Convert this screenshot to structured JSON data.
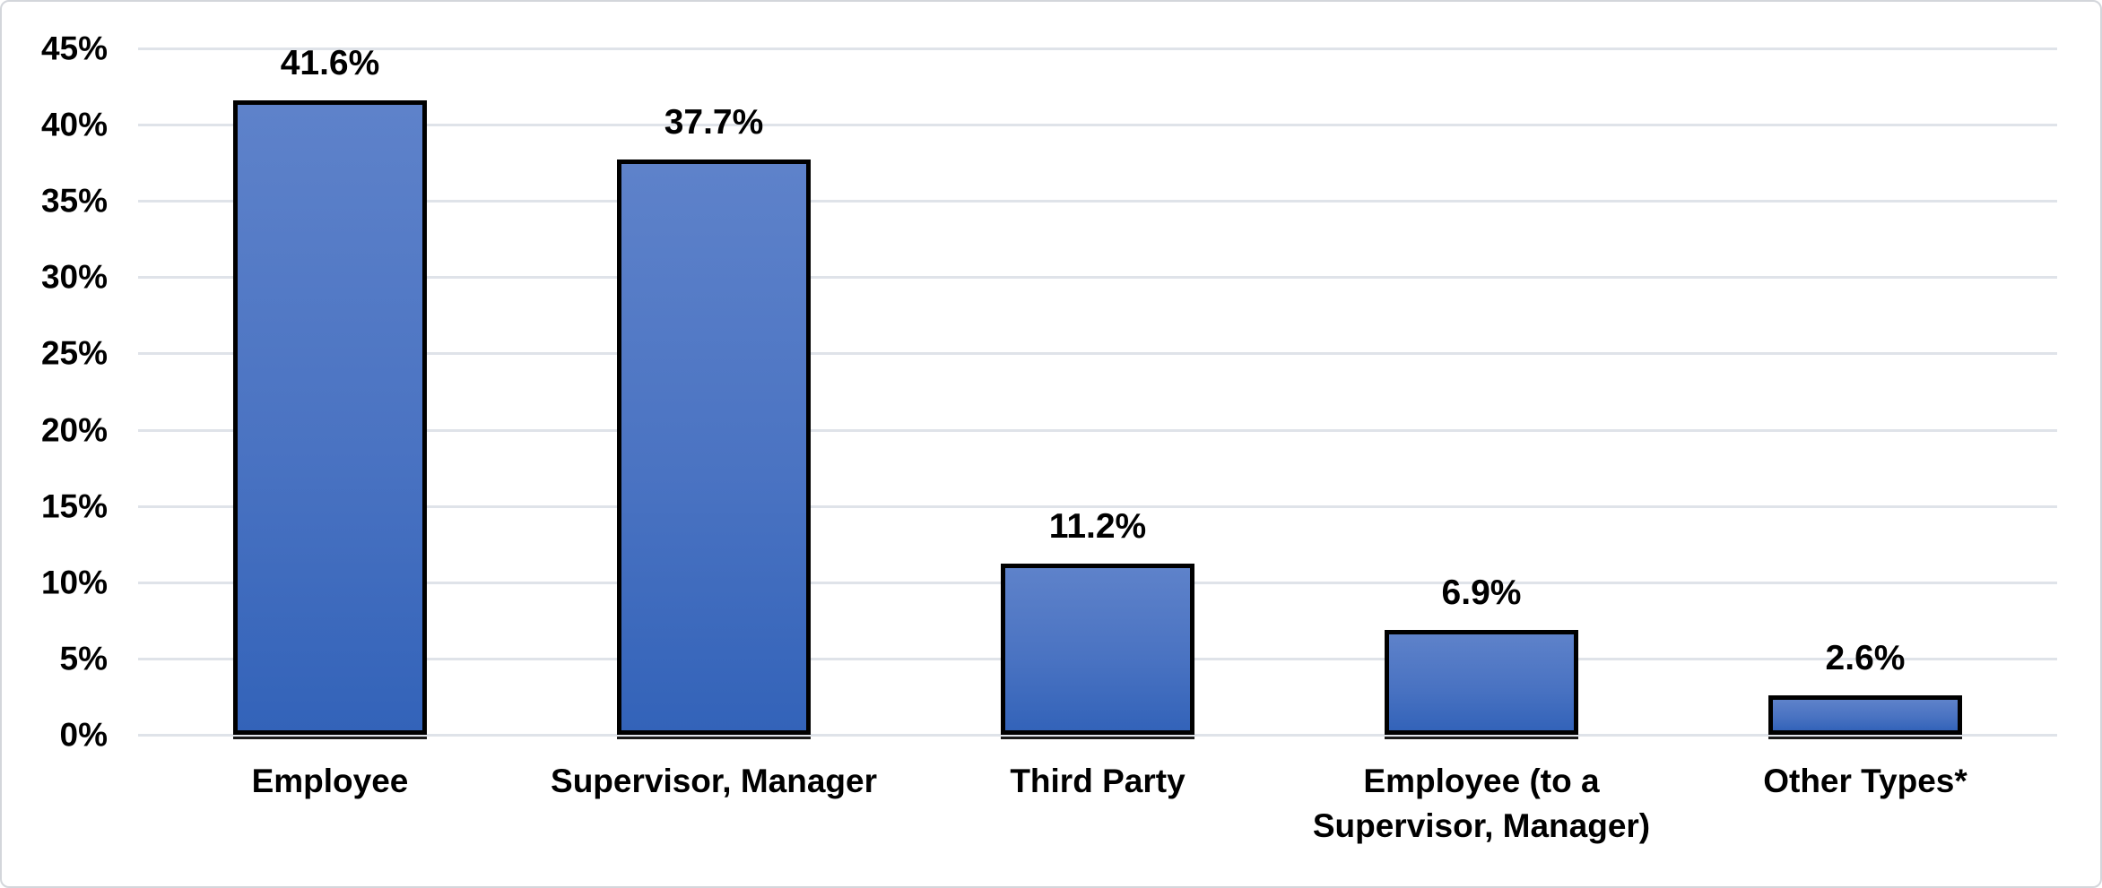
{
  "chart_data": {
    "type": "bar",
    "title": "",
    "xlabel": "",
    "ylabel": "",
    "categories": [
      "Employee",
      "Supervisor, Manager",
      "Third Party",
      "Employee (to a Supervisor, Manager)",
      "Other Types*"
    ],
    "values": [
      41.6,
      37.7,
      11.2,
      6.9,
      2.6
    ],
    "data_labels": [
      "41.6%",
      "37.7%",
      "11.2%",
      "6.9%",
      "2.6%"
    ],
    "y_ticks": [
      "45%",
      "40%",
      "35%",
      "30%",
      "25%",
      "20%",
      "15%",
      "10%",
      "5%",
      "0%"
    ],
    "y_tick_values": [
      45,
      40,
      35,
      30,
      25,
      20,
      15,
      10,
      5,
      0
    ],
    "ylim": [
      0,
      45
    ],
    "grid": true,
    "legend": false,
    "colors": {
      "bar_gradient_top": "#5e82ca",
      "bar_gradient_bottom": "#3363b9",
      "bar_border": "#000000",
      "gridline": "#dfe3e9",
      "text": "#000000",
      "background": "#ffffff",
      "frame_border": "#d3d6db"
    }
  }
}
